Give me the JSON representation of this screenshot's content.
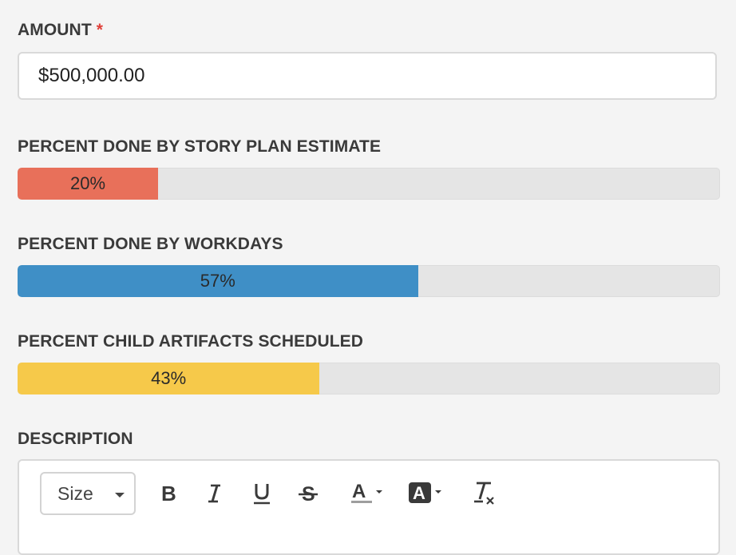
{
  "amount": {
    "label": "AMOUNT",
    "required_mark": "*",
    "value": "$500,000.00"
  },
  "progress": [
    {
      "label": "PERCENT DONE BY STORY PLAN ESTIMATE",
      "percent": 20,
      "text": "20%",
      "color": "#e8705a"
    },
    {
      "label": "PERCENT DONE BY WORKDAYS",
      "percent": 57,
      "text": "57%",
      "color": "#3f8fc6"
    },
    {
      "label": "PERCENT CHILD ARTIFACTS SCHEDULED",
      "percent": 43,
      "text": "43%",
      "color": "#f6c94a"
    }
  ],
  "description": {
    "label": "DESCRIPTION",
    "toolbar": {
      "size_select": "Size",
      "tools": [
        "bold-icon",
        "italic-icon",
        "underline-icon",
        "strikethrough-icon",
        "text-color-icon",
        "background-color-icon",
        "clear-format-icon"
      ]
    }
  }
}
